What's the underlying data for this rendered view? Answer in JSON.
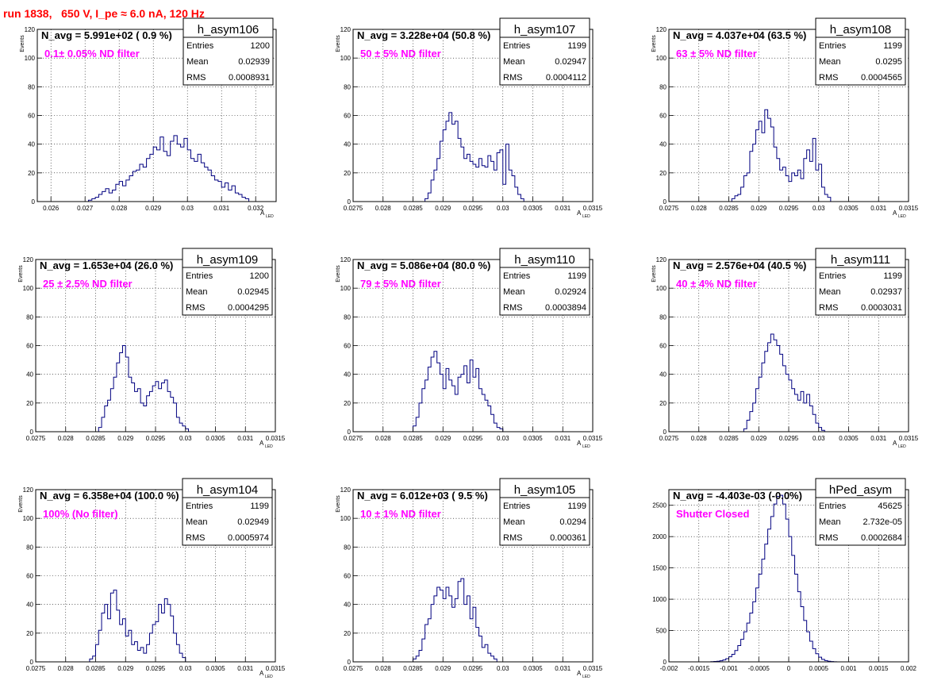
{
  "page_title": "run 1838,   650 V, I_pe ≈ 6.0 nA, 120 Hz",
  "colors": {
    "title": "#ff0000",
    "annotation": "#ff00ff",
    "histogram": "#000080",
    "grid": "#000000"
  },
  "chart_data": [
    {
      "type": "histogram",
      "name": "h_asym106",
      "n_avg_label": "N_avg = 5.991e+02 ( 0.9 %)",
      "filter_label": "0.1± 0.05% ND filter",
      "stats": {
        "Entries": "1200",
        "Mean": "0.02939",
        "RMS": "0.0008931"
      },
      "ylabel": "Events",
      "xlabel": "A",
      "xlabel_sub": "LED",
      "xlim": [
        0.0256,
        0.0326
      ],
      "ylim": [
        0,
        120
      ],
      "xticks": [
        0.026,
        0.027,
        0.028,
        0.029,
        0.03,
        0.031,
        0.032
      ],
      "xtick_labels": [
        "0.026",
        "0.027",
        "0.028",
        "0.029",
        "0.03",
        "0.031",
        "0.032"
      ],
      "yticks": [
        0,
        20,
        40,
        60,
        80,
        100,
        120
      ],
      "bin_start": 0.0271,
      "bin_width": 0.0001,
      "counts": [
        1,
        2,
        3,
        5,
        7,
        9,
        6,
        8,
        12,
        14,
        11,
        15,
        18,
        21,
        22,
        26,
        24,
        30,
        33,
        38,
        36,
        45,
        35,
        32,
        42,
        46,
        40,
        38,
        44,
        36,
        30,
        28,
        33,
        27,
        24,
        22,
        18,
        15,
        14,
        10,
        13,
        8,
        11,
        6,
        5,
        3,
        2
      ]
    },
    {
      "type": "histogram",
      "name": "h_asym107",
      "n_avg_label": "N_avg = 3.228e+04 (50.8 %)",
      "filter_label": "50 ± 5% ND filter",
      "stats": {
        "Entries": "1199",
        "Mean": "0.02947",
        "RMS": "0.0004112"
      },
      "ylabel": "Events",
      "xlabel": "A",
      "xlabel_sub": "LED",
      "xlim": [
        0.0275,
        0.0315
      ],
      "ylim": [
        0,
        120
      ],
      "xticks": [
        0.0275,
        0.028,
        0.0285,
        0.029,
        0.0295,
        0.03,
        0.0305,
        0.031,
        0.0315
      ],
      "xtick_labels": [
        "0.0275",
        "0.028",
        "0.0285",
        "0.029",
        "0.0295",
        "0.03",
        "0.0305",
        "0.031",
        "0.0315"
      ],
      "yticks": [
        0,
        20,
        40,
        60,
        80,
        100,
        120
      ],
      "bin_start": 0.0287,
      "bin_width": 5e-05,
      "counts": [
        2,
        6,
        15,
        22,
        30,
        42,
        50,
        56,
        62,
        54,
        56,
        44,
        38,
        30,
        33,
        28,
        26,
        24,
        30,
        25,
        24,
        32,
        28,
        22,
        34,
        36,
        12,
        40,
        22,
        18,
        10,
        5,
        2
      ]
    },
    {
      "type": "histogram",
      "name": "h_asym108",
      "n_avg_label": "N_avg = 4.037e+04 (63.5 %)",
      "filter_label": "63 ± 5% ND filter",
      "stats": {
        "Entries": "1199",
        "Mean": "0.0295",
        "RMS": "0.0004565"
      },
      "ylabel": "Events",
      "xlabel": "A",
      "xlabel_sub": "LED",
      "xlim": [
        0.0275,
        0.0315
      ],
      "ylim": [
        0,
        120
      ],
      "xticks": [
        0.0275,
        0.028,
        0.0285,
        0.029,
        0.0295,
        0.03,
        0.0305,
        0.031,
        0.0315
      ],
      "xtick_labels": [
        "0.0275",
        "0.028",
        "0.0285",
        "0.029",
        "0.0295",
        "0.03",
        "0.0305",
        "0.031",
        "0.0315"
      ],
      "yticks": [
        0,
        20,
        40,
        60,
        80,
        100,
        120
      ],
      "bin_start": 0.02855,
      "bin_width": 5e-05,
      "counts": [
        2,
        4,
        5,
        10,
        18,
        20,
        35,
        40,
        50,
        56,
        48,
        64,
        58,
        52,
        38,
        30,
        22,
        24,
        18,
        14,
        20,
        18,
        22,
        16,
        30,
        36,
        28,
        44,
        22,
        26,
        10,
        5,
        3
      ]
    },
    {
      "type": "histogram",
      "name": "h_asym109",
      "n_avg_label": "N_avg = 1.653e+04 (26.0 %)",
      "filter_label": "25 ± 2.5% ND filter",
      "stats": {
        "Entries": "1200",
        "Mean": "0.02945",
        "RMS": "0.0004295"
      },
      "ylabel": "Events",
      "xlabel": "A",
      "xlabel_sub": "LED",
      "xlim": [
        0.0275,
        0.0315
      ],
      "ylim": [
        0,
        120
      ],
      "xticks": [
        0.0275,
        0.028,
        0.0285,
        0.029,
        0.0295,
        0.03,
        0.0305,
        0.031,
        0.0315
      ],
      "xtick_labels": [
        "0.0275",
        "0.028",
        "0.0285",
        "0.029",
        "0.0295",
        "0.03",
        "0.0305",
        "0.031",
        "0.0315"
      ],
      "yticks": [
        0,
        20,
        40,
        60,
        80,
        100,
        120
      ],
      "bin_start": 0.02855,
      "bin_width": 5e-05,
      "counts": [
        3,
        10,
        18,
        22,
        30,
        38,
        48,
        55,
        60,
        52,
        38,
        34,
        28,
        30,
        20,
        18,
        25,
        28,
        32,
        35,
        30,
        34,
        36,
        28,
        24,
        20,
        10,
        6,
        4,
        2
      ]
    },
    {
      "type": "histogram",
      "name": "h_asym110",
      "n_avg_label": "N_avg = 5.086e+04 (80.0 %)",
      "filter_label": "79 ± 5% ND filter",
      "stats": {
        "Entries": "1199",
        "Mean": "0.02924",
        "RMS": "0.0003894"
      },
      "ylabel": "Events",
      "xlabel": "A",
      "xlabel_sub": "LED",
      "xlim": [
        0.0275,
        0.0315
      ],
      "ylim": [
        0,
        120
      ],
      "xticks": [
        0.0275,
        0.028,
        0.0285,
        0.029,
        0.0295,
        0.03,
        0.0305,
        0.031,
        0.0315
      ],
      "xtick_labels": [
        "0.0275",
        "0.028",
        "0.0285",
        "0.029",
        "0.0295",
        "0.03",
        "0.0305",
        "0.031",
        "0.0315"
      ],
      "yticks": [
        0,
        20,
        40,
        60,
        80,
        100,
        120
      ],
      "bin_start": 0.0285,
      "bin_width": 5e-05,
      "counts": [
        4,
        10,
        20,
        30,
        36,
        45,
        52,
        56,
        48,
        40,
        30,
        44,
        36,
        32,
        26,
        38,
        40,
        46,
        34,
        50,
        38,
        44,
        30,
        26,
        22,
        18,
        12,
        6,
        3,
        2
      ]
    },
    {
      "type": "histogram",
      "name": "h_asym111",
      "n_avg_label": "N_avg = 2.576e+04 (40.5 %)",
      "filter_label": "40 ± 4% ND filter",
      "stats": {
        "Entries": "1199",
        "Mean": "0.02937",
        "RMS": "0.0003031"
      },
      "ylabel": "Events",
      "xlabel": "A",
      "xlabel_sub": "LED",
      "xlim": [
        0.0275,
        0.0315
      ],
      "ylim": [
        0,
        120
      ],
      "xticks": [
        0.0275,
        0.028,
        0.0285,
        0.029,
        0.0295,
        0.03,
        0.0305,
        0.031,
        0.0315
      ],
      "xtick_labels": [
        "0.0275",
        "0.028",
        "0.0285",
        "0.029",
        "0.0295",
        "0.03",
        "0.0305",
        "0.031",
        "0.0315"
      ],
      "yticks": [
        0,
        20,
        40,
        60,
        80,
        100,
        120
      ],
      "bin_start": 0.02875,
      "bin_width": 5e-05,
      "counts": [
        2,
        8,
        14,
        20,
        30,
        38,
        48,
        56,
        62,
        68,
        64,
        60,
        54,
        46,
        40,
        36,
        30,
        26,
        22,
        28,
        20,
        26,
        18,
        12,
        6,
        3,
        1
      ]
    },
    {
      "type": "histogram",
      "name": "h_asym104",
      "n_avg_label": "N_avg = 6.358e+04 (100.0 %)",
      "filter_label": "100% (No filter)",
      "stats": {
        "Entries": "1199",
        "Mean": "0.02949",
        "RMS": "0.0005974"
      },
      "ylabel": "Events",
      "xlabel": "A",
      "xlabel_sub": "LED",
      "xlim": [
        0.0275,
        0.0315
      ],
      "ylim": [
        0,
        120
      ],
      "xticks": [
        0.0275,
        0.028,
        0.0285,
        0.029,
        0.0295,
        0.03,
        0.0305,
        0.031,
        0.0315
      ],
      "xtick_labels": [
        "0.0275",
        "0.028",
        "0.0285",
        "0.029",
        "0.0295",
        "0.03",
        "0.0305",
        "0.031",
        "0.0315"
      ],
      "yticks": [
        0,
        20,
        40,
        60,
        80,
        100,
        120
      ],
      "bin_start": 0.0284,
      "bin_width": 5e-05,
      "counts": [
        2,
        4,
        12,
        22,
        34,
        40,
        30,
        48,
        50,
        36,
        26,
        30,
        18,
        22,
        12,
        14,
        8,
        10,
        6,
        12,
        20,
        26,
        28,
        40,
        34,
        44,
        40,
        32,
        20,
        12,
        6,
        3
      ]
    },
    {
      "type": "histogram",
      "name": "h_asym105",
      "n_avg_label": "N_avg = 6.012e+03 ( 9.5 %)",
      "filter_label": "10 ± 1% ND filter",
      "stats": {
        "Entries": "1199",
        "Mean": "0.0294",
        "RMS": "0.000361"
      },
      "ylabel": "Events",
      "xlabel": "A",
      "xlabel_sub": "LED",
      "xlim": [
        0.0275,
        0.0315
      ],
      "ylim": [
        0,
        120
      ],
      "xticks": [
        0.0275,
        0.028,
        0.0285,
        0.029,
        0.0295,
        0.03,
        0.0305,
        0.031,
        0.0315
      ],
      "xtick_labels": [
        "0.0275",
        "0.028",
        "0.0285",
        "0.029",
        "0.0295",
        "0.03",
        "0.0305",
        "0.031",
        "0.0315"
      ],
      "yticks": [
        0,
        20,
        40,
        60,
        80,
        100,
        120
      ],
      "bin_start": 0.0285,
      "bin_width": 5e-05,
      "counts": [
        2,
        4,
        8,
        16,
        26,
        30,
        40,
        46,
        52,
        50,
        44,
        52,
        46,
        38,
        44,
        56,
        58,
        40,
        46,
        30,
        38,
        24,
        18,
        10,
        12,
        6,
        4,
        2
      ]
    },
    {
      "type": "histogram",
      "name": "hPed_asym",
      "n_avg_label": "N_avg = -4.403e-03 (-0.0%)",
      "filter_label": "Shutter Closed",
      "stats": {
        "Entries": "45625",
        "Mean": "2.732e-05",
        "RMS": "0.0002684"
      },
      "ylabel": "",
      "xlabel": "",
      "xlabel_sub": "",
      "xlim": [
        -0.002,
        0.002
      ],
      "ylim": [
        0,
        2750
      ],
      "xticks": [
        -0.002,
        -0.0015,
        -0.001,
        -0.0005,
        0,
        0.0005,
        0.001,
        0.0015,
        0.002
      ],
      "xtick_labels": [
        "-0.002",
        "-0.0015",
        "-0.001",
        "-0.0005",
        "0",
        "0.0005",
        "0.001",
        "0.0015",
        "0.002"
      ],
      "yticks": [
        0,
        500,
        1000,
        1500,
        2000,
        2500
      ],
      "bin_start": -0.0013,
      "bin_width": 5e-05,
      "counts": [
        3,
        6,
        10,
        18,
        30,
        50,
        80,
        120,
        180,
        260,
        360,
        480,
        620,
        780,
        960,
        1180,
        1400,
        1640,
        1880,
        2120,
        2320,
        2520,
        2640,
        2660,
        2520,
        2280,
        2000,
        1700,
        1400,
        1120,
        880,
        660,
        480,
        330,
        210,
        130,
        75,
        40,
        20,
        10,
        5,
        2
      ]
    }
  ]
}
